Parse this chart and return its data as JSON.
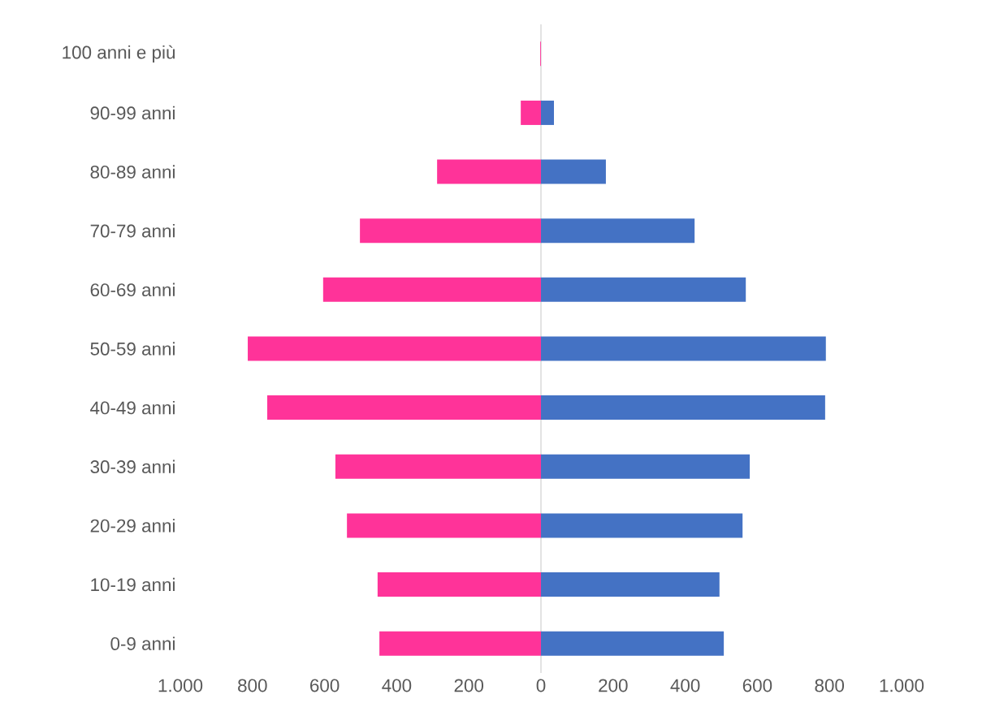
{
  "chart_data": {
    "type": "bar",
    "orientation": "horizontal",
    "stacked": true,
    "categories": [
      "100 anni e più",
      "90-99 anni",
      "80-89 anni",
      "70-79 anni",
      "60-69 anni",
      "50-59 anni",
      "40-49 anni",
      "30-39 anni",
      "20-29 anni",
      "10-19 anni",
      "0-9 anni"
    ],
    "series": [
      {
        "color": "#ff3399",
        "values": [
          -2,
          -56,
          -288,
          -502,
          -604,
          -813,
          -759,
          -570,
          -538,
          -453,
          -448
        ]
      },
      {
        "color": "#4472c4",
        "values": [
          0,
          36,
          180,
          426,
          568,
          790,
          788,
          579,
          559,
          495,
          507
        ]
      }
    ],
    "xlim": [
      -1000,
      1000
    ],
    "xticks": [
      {
        "value": -1000,
        "label": "1.000"
      },
      {
        "value": -800,
        "label": "800"
      },
      {
        "value": -600,
        "label": "600"
      },
      {
        "value": -400,
        "label": "400"
      },
      {
        "value": -200,
        "label": "200"
      },
      0,
      200,
      400,
      600,
      800,
      {
        "value": 1000,
        "label": "1.000"
      }
    ],
    "ref_lines": [
      {
        "axis": "x",
        "value": 0,
        "color": "#d9d9d9"
      }
    ]
  }
}
